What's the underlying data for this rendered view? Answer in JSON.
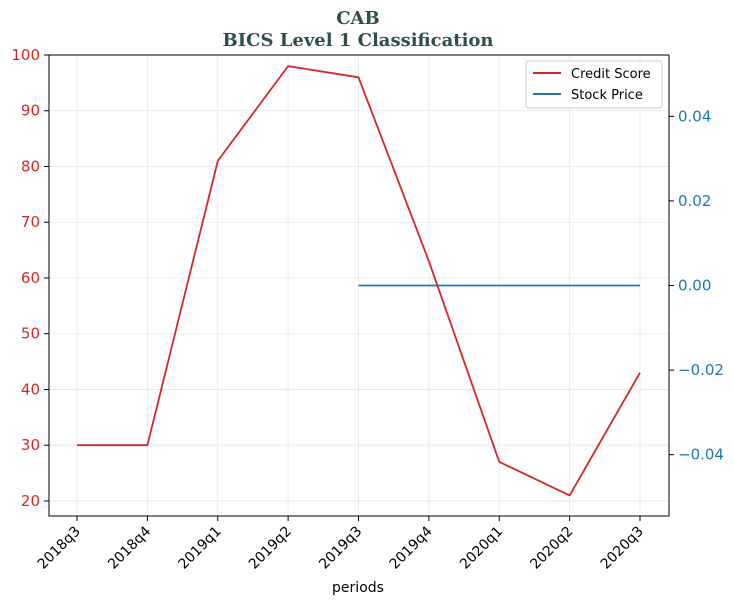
{
  "chart_data": {
    "type": "line",
    "title": "CAB",
    "subtitle": "BICS Level 1 Classification",
    "xlabel": "periods",
    "categories": [
      "2018q3",
      "2018q4",
      "2019q1",
      "2019q2",
      "2019q3",
      "2019q4",
      "2020q1",
      "2020q2",
      "2020q3"
    ],
    "left_axis": {
      "ylim": [
        17.3,
        100
      ],
      "ticks": [
        20,
        30,
        40,
        50,
        60,
        70,
        80,
        90,
        100
      ],
      "color": "#d62728"
    },
    "right_axis": {
      "ylim": [
        -0.0545,
        0.0545
      ],
      "ticks": [
        -0.04,
        -0.02,
        0.0,
        0.02,
        0.04
      ],
      "tick_labels": [
        "−0.04",
        "−0.02",
        "0.00",
        "0.02",
        "0.04"
      ],
      "color": "#1f77b4"
    },
    "series": [
      {
        "name": "Credit Score",
        "axis": "left",
        "color": "#d62728",
        "values": [
          30,
          30,
          81,
          98,
          96,
          63,
          27,
          21,
          43
        ]
      },
      {
        "name": "Stock Price",
        "axis": "right",
        "color": "#1f77b4",
        "values": [
          null,
          null,
          null,
          null,
          0.0,
          0.0,
          0.0,
          0.0,
          0.0
        ]
      }
    ],
    "grid": true,
    "legend": "top-right"
  }
}
